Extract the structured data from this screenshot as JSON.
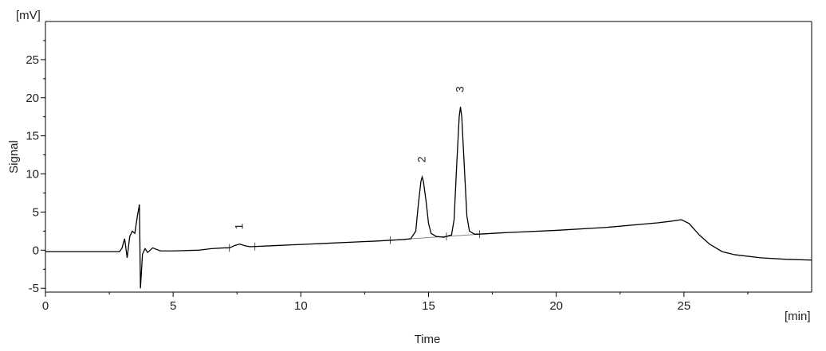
{
  "chart_data": {
    "type": "line",
    "xlabel": "Time",
    "ylabel": "Signal",
    "x_unit": "[min]",
    "y_unit": "[mV]",
    "xlim": [
      0,
      30
    ],
    "ylim": [
      -5.5,
      30
    ],
    "x_ticks": [
      "0",
      "5",
      "10",
      "15",
      "20",
      "25"
    ],
    "y_ticks": [
      "-5",
      "0",
      "5",
      "10",
      "15",
      "20",
      "25"
    ],
    "grid": false,
    "legend": "none",
    "line_color": "#000000",
    "baseline_color": "#888888",
    "peaks": [
      {
        "label": "1",
        "time": 7.6,
        "height": 0.8
      },
      {
        "label": "2",
        "time": 14.75,
        "height": 9.6
      },
      {
        "label": "3",
        "time": 16.25,
        "height": 18.8
      }
    ],
    "series": [
      {
        "points": [
          [
            0,
            -0.2
          ],
          [
            2.0,
            -0.2
          ],
          [
            2.9,
            -0.2
          ],
          [
            3.0,
            0.3
          ],
          [
            3.1,
            1.5
          ],
          [
            3.2,
            -1.0
          ],
          [
            3.3,
            1.8
          ],
          [
            3.4,
            2.5
          ],
          [
            3.5,
            2.2
          ],
          [
            3.6,
            4.5
          ],
          [
            3.68,
            6.0
          ],
          [
            3.72,
            -5.0
          ],
          [
            3.8,
            -0.5
          ],
          [
            3.9,
            0.2
          ],
          [
            4.0,
            -0.3
          ],
          [
            4.2,
            0.3
          ],
          [
            4.5,
            -0.1
          ],
          [
            5.0,
            -0.1
          ],
          [
            6.0,
            0.0
          ],
          [
            6.5,
            0.2
          ],
          [
            7.0,
            0.3
          ],
          [
            7.2,
            0.3
          ],
          [
            7.4,
            0.6
          ],
          [
            7.6,
            0.8
          ],
          [
            7.8,
            0.6
          ],
          [
            8.0,
            0.45
          ],
          [
            9.0,
            0.6
          ],
          [
            10.0,
            0.75
          ],
          [
            11.0,
            0.9
          ],
          [
            12.0,
            1.05
          ],
          [
            13.0,
            1.2
          ],
          [
            14.0,
            1.4
          ],
          [
            14.3,
            1.5
          ],
          [
            14.5,
            2.5
          ],
          [
            14.6,
            6.0
          ],
          [
            14.7,
            9.0
          ],
          [
            14.75,
            9.6
          ],
          [
            14.8,
            9.0
          ],
          [
            14.9,
            6.5
          ],
          [
            15.0,
            3.5
          ],
          [
            15.1,
            2.2
          ],
          [
            15.3,
            1.8
          ],
          [
            15.6,
            1.7
          ],
          [
            15.9,
            2.0
          ],
          [
            16.0,
            4.0
          ],
          [
            16.1,
            11.0
          ],
          [
            16.2,
            17.5
          ],
          [
            16.25,
            18.8
          ],
          [
            16.3,
            17.5
          ],
          [
            16.4,
            11.0
          ],
          [
            16.5,
            4.5
          ],
          [
            16.6,
            2.5
          ],
          [
            16.8,
            2.1
          ],
          [
            17.0,
            2.1
          ],
          [
            18.0,
            2.3
          ],
          [
            20.0,
            2.6
          ],
          [
            22.0,
            3.0
          ],
          [
            24.0,
            3.6
          ],
          [
            24.5,
            3.8
          ],
          [
            24.9,
            4.0
          ],
          [
            25.2,
            3.5
          ],
          [
            25.6,
            2.0
          ],
          [
            26.0,
            0.8
          ],
          [
            26.5,
            -0.2
          ],
          [
            27.0,
            -0.6
          ],
          [
            28.0,
            -1.0
          ],
          [
            29.0,
            -1.2
          ],
          [
            30.0,
            -1.3
          ]
        ]
      }
    ],
    "integration_baselines": [
      {
        "from": [
          14.3,
          1.5
        ],
        "to": [
          17.0,
          2.1
        ]
      }
    ],
    "integration_markers": [
      7.2,
      8.2,
      13.5,
      15.7,
      17.0
    ]
  }
}
